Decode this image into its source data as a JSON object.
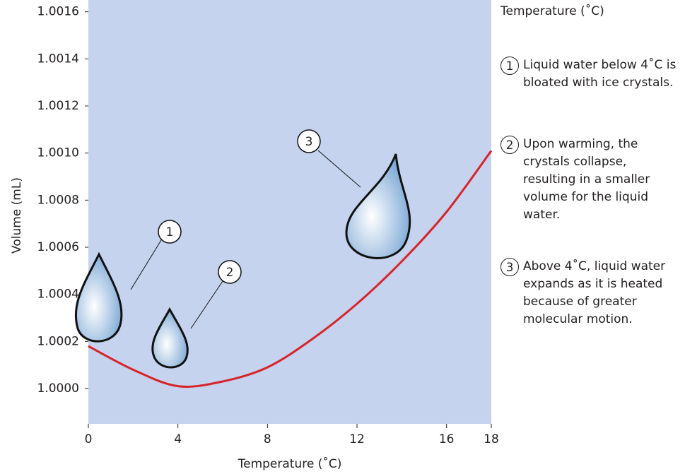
{
  "chart_data": {
    "type": "line",
    "caption": "Temperature (˚C)",
    "x_label": "Temperature (˚C)",
    "y_label": "Volume (mL)",
    "x": [
      0,
      2,
      4,
      6,
      8,
      10,
      12,
      14,
      16,
      18
    ],
    "values": [
      1.00018,
      1.00008,
      1.00001,
      1.00003,
      1.00009,
      1.00021,
      1.00036,
      1.00054,
      1.00075,
      1.00101
    ],
    "color": "#d7242a",
    "xlim": [
      0,
      18
    ],
    "xticks": [
      0,
      4,
      8,
      12,
      16,
      18
    ],
    "ylim": [
      0.99985,
      1.00165
    ],
    "yticks": [
      {
        "value": 1,
        "label": "1.0000"
      },
      1.0002,
      1.0004,
      1.0006,
      1.0008,
      {
        "value": 1.001,
        "label": "1.0010"
      },
      1.0012,
      1.0014,
      1.0016
    ],
    "annotations": [
      {
        "number": "1",
        "text": "Liquid water below 4˚C is bloated with ice crystals."
      },
      {
        "number": "2",
        "text": "Upon warming, the crystals collapse, resulting in a smaller volume for the liquid water."
      },
      {
        "number": "3",
        "text": "Above 4˚C, liquid water expands as it is heated because of greater molecular motion."
      }
    ]
  }
}
